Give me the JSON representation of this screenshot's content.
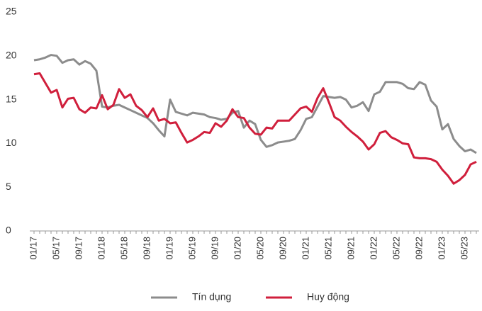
{
  "chart_data": {
    "type": "line",
    "categories": [
      "01/17",
      null,
      null,
      null,
      "05/17",
      null,
      null,
      null,
      "09/17",
      null,
      null,
      null,
      "01/18",
      null,
      null,
      null,
      "05/18",
      null,
      null,
      null,
      "09/18",
      null,
      null,
      null,
      "01/19",
      null,
      null,
      null,
      "05/19",
      null,
      null,
      null,
      "09/19",
      null,
      null,
      null,
      "01/20",
      null,
      null,
      null,
      "05/20",
      null,
      null,
      null,
      "09/20",
      null,
      null,
      null,
      "01/21",
      null,
      null,
      null,
      "05/21",
      null,
      null,
      null,
      "09/21",
      null,
      null,
      null,
      "01/22",
      null,
      null,
      null,
      "05/22",
      null,
      null,
      null,
      "09/22",
      null,
      null,
      null,
      "01/23",
      null,
      null,
      null,
      "05/23",
      null,
      null
    ],
    "series": [
      {
        "name": "Tín dụng",
        "color": "#8c8c8c",
        "values": [
          19.5,
          19.6,
          19.8,
          20.1,
          20.0,
          19.2,
          19.5,
          19.6,
          19.0,
          19.4,
          19.1,
          18.3,
          14.2,
          14.1,
          14.3,
          14.4,
          14.1,
          13.8,
          13.5,
          13.2,
          12.9,
          12.3,
          11.5,
          10.8,
          15.0,
          13.6,
          13.4,
          13.2,
          13.5,
          13.4,
          13.3,
          13.0,
          12.9,
          12.7,
          12.8,
          13.5,
          13.7,
          11.8,
          12.6,
          12.2,
          10.4,
          9.6,
          9.8,
          10.1,
          10.2,
          10.3,
          10.5,
          11.5,
          12.8,
          13.0,
          14.2,
          15.4,
          15.3,
          15.2,
          15.3,
          15.0,
          14.1,
          14.3,
          14.7,
          13.7,
          15.6,
          15.9,
          17.0,
          17.0,
          17.0,
          16.8,
          16.3,
          16.2,
          17.0,
          16.7,
          14.9,
          14.2,
          11.6,
          12.2,
          10.5,
          9.7,
          9.1,
          9.3,
          8.9
        ]
      },
      {
        "name": "Huy động",
        "color": "#d01f3c",
        "values": [
          17.9,
          18.0,
          16.9,
          15.8,
          16.1,
          14.1,
          15.1,
          15.2,
          13.9,
          13.5,
          14.1,
          14.0,
          15.5,
          13.9,
          14.4,
          16.2,
          15.2,
          15.6,
          14.3,
          13.8,
          13.0,
          14.0,
          12.6,
          12.8,
          12.3,
          12.4,
          11.2,
          10.1,
          10.4,
          10.8,
          11.3,
          11.2,
          12.3,
          11.9,
          12.6,
          13.9,
          13.0,
          12.9,
          11.8,
          11.1,
          11.0,
          11.8,
          11.7,
          12.6,
          12.6,
          12.6,
          13.3,
          14.0,
          14.2,
          13.6,
          15.2,
          16.3,
          14.7,
          13.0,
          12.6,
          11.9,
          11.3,
          10.8,
          10.2,
          9.3,
          9.9,
          11.2,
          11.4,
          10.7,
          10.4,
          10.0,
          9.9,
          8.4,
          8.3,
          8.3,
          8.2,
          7.9,
          7.0,
          6.3,
          5.4,
          5.8,
          6.4,
          7.6,
          7.9
        ]
      }
    ],
    "ylim": [
      0,
      25
    ],
    "yticks": [
      0,
      5,
      10,
      15,
      20,
      25
    ],
    "grid": false,
    "legend": "bottom"
  }
}
